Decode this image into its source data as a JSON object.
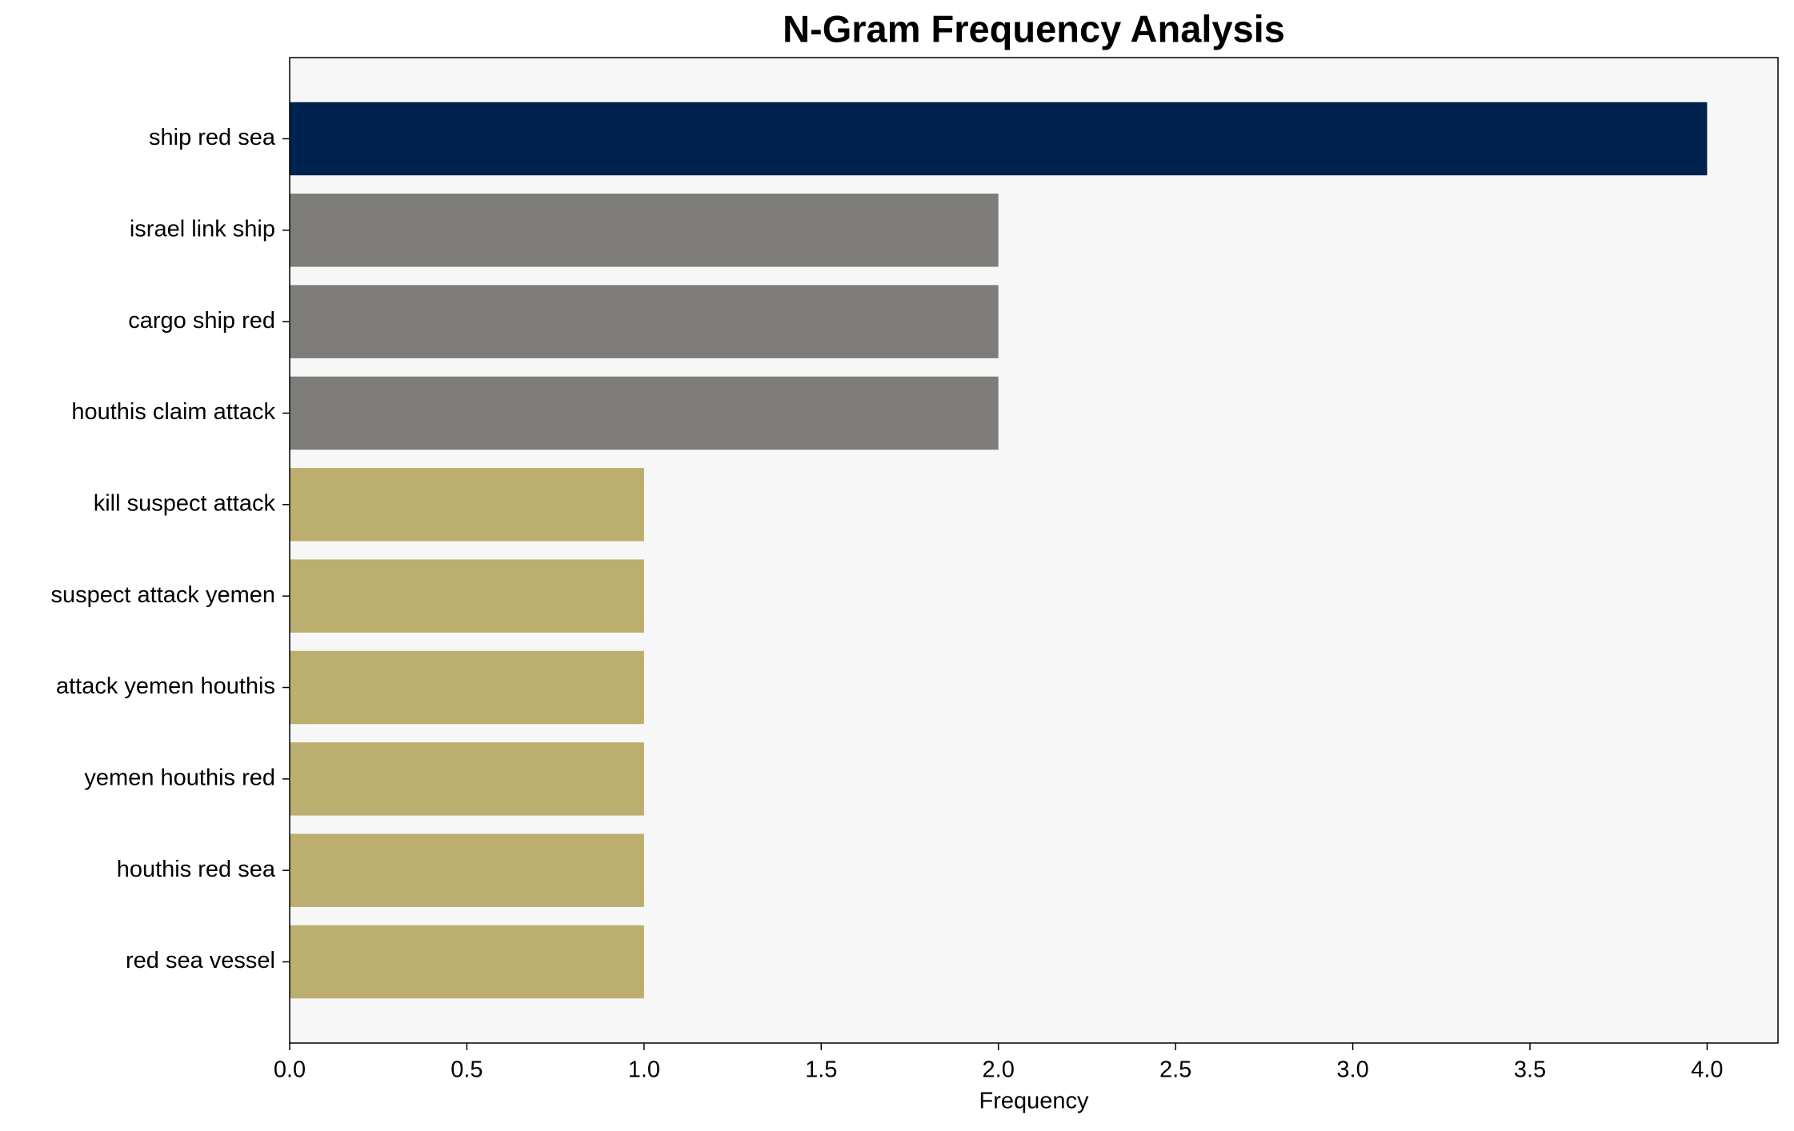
{
  "chart_data": {
    "type": "barh",
    "title": "N-Gram Frequency Analysis",
    "x_label": "Frequency",
    "categories": [
      "ship red sea",
      "israel link ship",
      "cargo ship red",
      "houthis claim attack",
      "kill suspect attack",
      "suspect attack yemen",
      "attack yemen houthis",
      "yemen houthis red",
      "houthis red sea",
      "red sea vessel"
    ],
    "values": [
      4,
      2,
      2,
      2,
      1,
      1,
      1,
      1,
      1,
      1
    ],
    "colors": [
      "#00224e",
      "#7d7c78",
      "#7d7c78",
      "#7d7c78",
      "#bcae6e",
      "#bcae6e",
      "#bcae6e",
      "#bcae6e",
      "#bcae6e",
      "#bcae6e"
    ],
    "xlim": [
      0,
      4.2
    ],
    "xticks": [
      {
        "value": 0,
        "label": "0.0"
      },
      0.5,
      {
        "value": 1,
        "label": "1.0"
      },
      1.5,
      {
        "value": 2,
        "label": "2.0"
      },
      2.5,
      {
        "value": 3,
        "label": "3.0"
      },
      3.5,
      {
        "value": 4,
        "label": "4.0"
      }
    ],
    "grid": false
  }
}
